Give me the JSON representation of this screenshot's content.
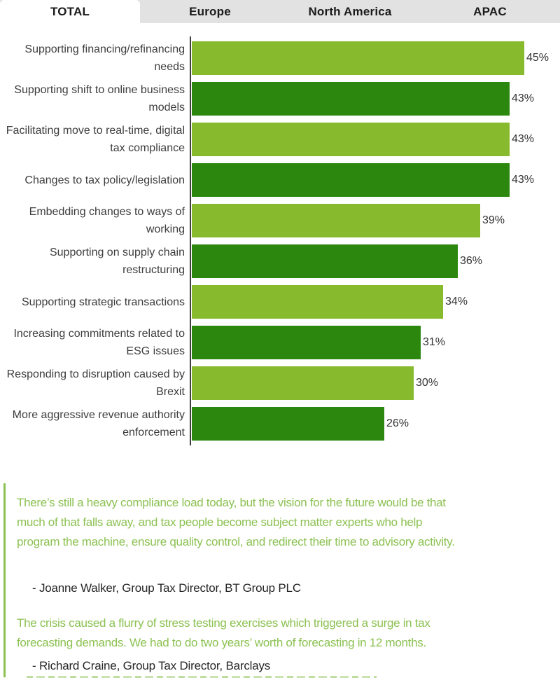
{
  "tabs": [
    {
      "label": "TOTAL",
      "active": true
    },
    {
      "label": "Europe",
      "active": false
    },
    {
      "label": "North America",
      "active": false
    },
    {
      "label": "APAC",
      "active": false
    }
  ],
  "chart_data": {
    "type": "bar",
    "orientation": "horizontal",
    "categories": [
      "Supporting financing/refinancing needs",
      "Supporting shift to online business models",
      "Facilitating move to real-time, digital tax compliance",
      "Changes to tax policy/legislation",
      "Embedding changes to ways of working",
      "Supporting on supply chain restructuring",
      "Supporting strategic transactions",
      "Increasing commitments related to ESG issues",
      "Responding to disruption caused by Brexit",
      "More aggressive revenue authority enforcement"
    ],
    "values": [
      45,
      43,
      43,
      43,
      39,
      36,
      34,
      31,
      30,
      26
    ],
    "value_suffix": "%",
    "xlim": [
      0,
      45
    ],
    "title": "",
    "xlabel": "",
    "ylabel": "",
    "grid": false,
    "legend": false,
    "bar_colors": {
      "light": "#88ba2e",
      "dark": "#2c870f"
    }
  },
  "quotes": [
    {
      "text": "There’s still a heavy compliance load today, but the vision for the future would be that\nmuch of that falls away, and tax people become subject matter experts who help\nprogram the machine, ensure quality control, and redirect their time to advisory activity.",
      "attribution": "- Joanne Walker, Group Tax Director, BT Group PLC"
    },
    {
      "text": "The crisis caused a flurry of stress testing exercises which triggered a surge in tax\nforecasting demands. We had to do two years’ worth of forecasting in 12 months.",
      "attribution": "- Richard Craine, Group Tax Director, Barclays"
    }
  ],
  "colors": {
    "bar_light_green": "#88ba2e",
    "bar_dark_green": "#2c870f",
    "quote_green": "#8cc152",
    "tab_bar_bg": "#e2e2e2",
    "axis": "#404040",
    "label_text": "#3d3d3d"
  }
}
